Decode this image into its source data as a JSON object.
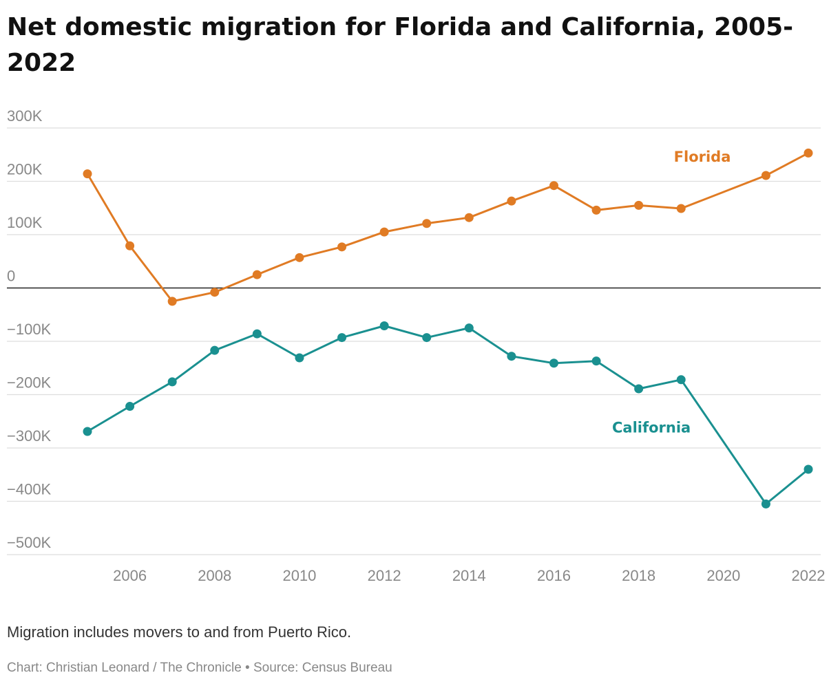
{
  "chart_data": {
    "type": "line",
    "title": "Net domestic migration for Florida and California, 2005-2022",
    "x": [
      2005,
      2006,
      2007,
      2008,
      2009,
      2010,
      2011,
      2012,
      2013,
      2014,
      2015,
      2016,
      2017,
      2018,
      2019,
      2021,
      2022
    ],
    "x_ticks": [
      2006,
      2008,
      2010,
      2012,
      2014,
      2016,
      2018,
      2020,
      2022
    ],
    "y_ticks": [
      {
        "value": 300000,
        "label": "300K"
      },
      {
        "value": 200000,
        "label": "200K"
      },
      {
        "value": 100000,
        "label": "100K"
      },
      {
        "value": 0,
        "label": "0"
      },
      {
        "value": -100000,
        "label": "−100K"
      },
      {
        "value": -200000,
        "label": "−200K"
      },
      {
        "value": -300000,
        "label": "−300K"
      },
      {
        "value": -400000,
        "label": "−400K"
      },
      {
        "value": -500000,
        "label": "−500K"
      }
    ],
    "ylim": [
      -500000,
      300000
    ],
    "xlim": [
      2005,
      2022
    ],
    "grid": true,
    "legend": "inline labels",
    "series": [
      {
        "name": "Florida",
        "color": "#e07b24",
        "values": [
          214000,
          79000,
          -25000,
          -8000,
          25000,
          57000,
          77000,
          105000,
          121000,
          132000,
          163000,
          192000,
          146000,
          155000,
          149000,
          211000,
          253000
        ]
      },
      {
        "name": "California",
        "color": "#1a9090",
        "values": [
          -269000,
          -222000,
          -176000,
          -117000,
          -86000,
          -131000,
          -93000,
          -71000,
          -93000,
          -75000,
          -128000,
          -141000,
          -137000,
          -189000,
          -172000,
          -405000,
          -340000
        ]
      }
    ]
  },
  "footer": {
    "note": "Migration includes movers to and from Puerto Rico.",
    "credit": "Chart: Christian Leonard / The Chronicle • Source: Census Bureau"
  }
}
